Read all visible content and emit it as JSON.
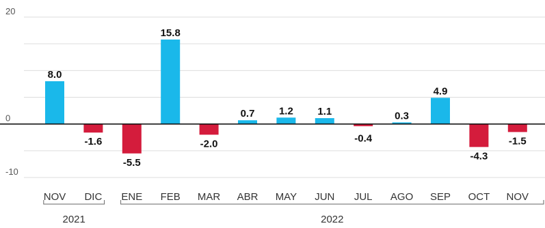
{
  "chart_data": {
    "type": "bar",
    "title": "",
    "xlabel": "",
    "ylabel": "",
    "categories": [
      "NOV",
      "DIC",
      "ENE",
      "FEB",
      "MAR",
      "ABR",
      "MAY",
      "JUN",
      "JUL",
      "AGO",
      "SEP",
      "OCT",
      "NOV"
    ],
    "values": [
      8.0,
      -1.6,
      -5.5,
      15.8,
      -2.0,
      0.7,
      1.2,
      1.1,
      -0.4,
      0.3,
      4.9,
      -4.3,
      -1.5
    ],
    "value_labels": [
      "8.0",
      "-1.6",
      "-5.5",
      "15.8",
      "-2.0",
      "0.7",
      "1.2",
      "1.1",
      "-0.4",
      "0.3",
      "4.9",
      "-4.3",
      "-1.5"
    ],
    "ylim": [
      -10,
      20
    ],
    "yticks": [
      "20",
      "0",
      "-10"
    ],
    "grid": true,
    "year_groups": [
      {
        "label": "2021",
        "start": 0,
        "end": 1
      },
      {
        "label": "2022",
        "start": 2,
        "end": 12
      }
    ],
    "colors": {
      "positive": "#1ab8ea",
      "negative": "#d41c3c",
      "grid": "#dddddd",
      "baseline": "#111111"
    }
  }
}
